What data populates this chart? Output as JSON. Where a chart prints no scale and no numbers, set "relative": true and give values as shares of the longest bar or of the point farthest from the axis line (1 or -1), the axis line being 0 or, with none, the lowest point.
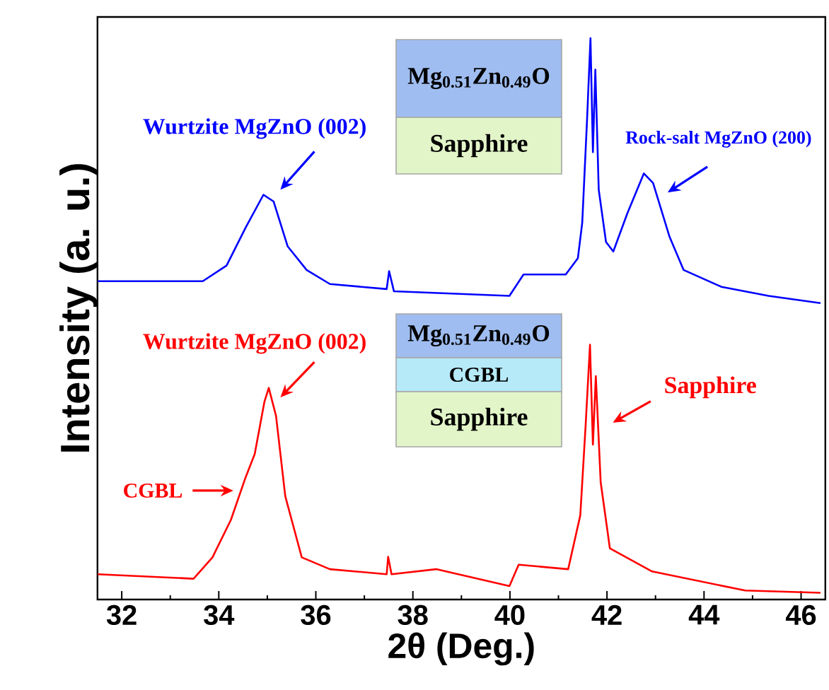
{
  "chart_data": {
    "type": "line",
    "relative": true,
    "xlabel": "2θ (Deg.)",
    "ylabel": "Intensity (a. u.)",
    "xlim": [
      31.5,
      46.5
    ],
    "xticks": [
      32,
      34,
      36,
      38,
      40,
      42,
      44,
      46
    ],
    "series": [
      {
        "color": "#0000ff",
        "x": [
          31.5,
          33.67,
          34.16,
          34.55,
          34.92,
          35.13,
          35.42,
          35.81,
          36.29,
          37.46,
          37.51,
          37.61,
          39.99,
          40.28,
          41.15,
          41.4,
          41.49,
          41.59,
          41.66,
          41.71,
          41.76,
          41.83,
          41.98,
          42.13,
          42.42,
          42.76,
          42.95,
          43.29,
          43.58,
          44.36,
          45.33,
          46.4
        ],
        "values": [
          0.567,
          0.567,
          0.595,
          0.662,
          0.721,
          0.709,
          0.629,
          0.587,
          0.562,
          0.553,
          0.585,
          0.549,
          0.541,
          0.579,
          0.579,
          0.608,
          0.671,
          0.856,
          1.0,
          0.797,
          0.944,
          0.73,
          0.637,
          0.62,
          0.688,
          0.759,
          0.742,
          0.646,
          0.587,
          0.557,
          0.541,
          0.528
        ]
      },
      {
        "color": "#ff0000",
        "x": [
          31.5,
          33.48,
          33.87,
          34.25,
          34.55,
          34.74,
          34.94,
          35.03,
          35.18,
          35.37,
          35.71,
          36.29,
          37.46,
          37.49,
          37.56,
          38.48,
          39.99,
          40.18,
          41.2,
          41.45,
          41.56,
          41.65,
          41.71,
          41.77,
          41.87,
          42.06,
          42.93,
          44.85,
          46.4
        ],
        "values": [
          0.045,
          0.037,
          0.075,
          0.142,
          0.217,
          0.259,
          0.352,
          0.377,
          0.327,
          0.184,
          0.075,
          0.054,
          0.045,
          0.076,
          0.045,
          0.054,
          0.024,
          0.062,
          0.054,
          0.15,
          0.31,
          0.454,
          0.276,
          0.398,
          0.209,
          0.091,
          0.05,
          0.016,
          0.012
        ]
      }
    ],
    "annotations": [
      "Wurtzite MgZnO (002)",
      "Rock-salt MgZnO (200)",
      "Wurtzite MgZnO (002)",
      "CGBL",
      "Sapphire",
      "Mg$_{0.51}$Zn$_{0.49}$O",
      "Sapphire",
      "Mg$_{0.51}$Zn$_{0.49}$O",
      "CGBL",
      "Sapphire"
    ]
  }
}
